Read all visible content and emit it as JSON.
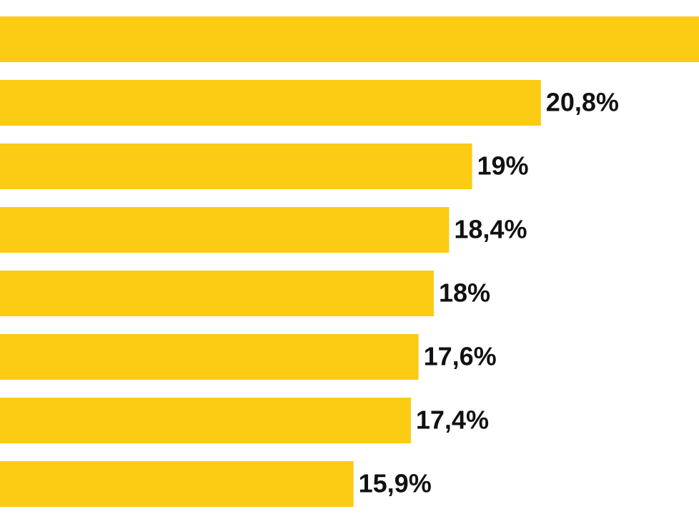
{
  "chart_data": {
    "type": "bar",
    "orientation": "horizontal",
    "color": "#fccb14",
    "values": [
      25,
      20.8,
      19,
      18.4,
      18,
      17.6,
      17.4,
      15.9
    ],
    "value_labels": [
      null,
      "20,8%",
      "19%",
      "18,4%",
      "18%",
      "17,6%",
      "17,4%",
      "15,9%"
    ]
  }
}
